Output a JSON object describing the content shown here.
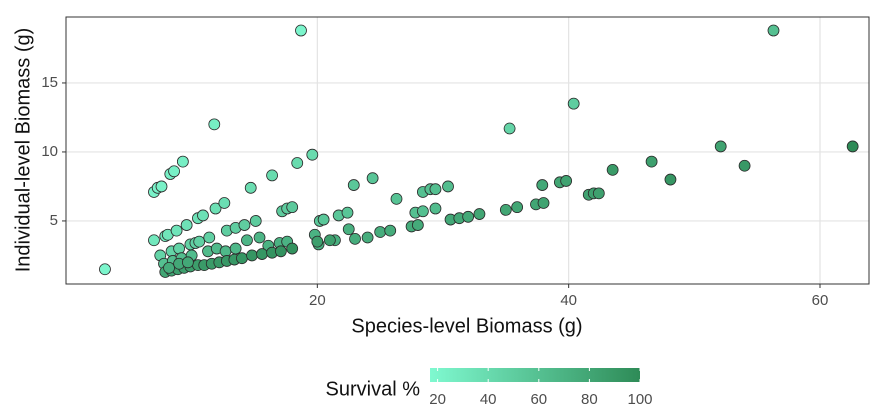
{
  "chart_data": {
    "type": "scatter",
    "x_label": "Species-level Biomass (g)",
    "y_label": "Individual-level Biomass (g)",
    "color_label": "Survival %",
    "color_low": "#7ff9d0",
    "color_high": "#2e8b57",
    "colorlim": [
      17,
      100
    ],
    "colorticks": [
      20,
      40,
      60,
      80,
      100
    ],
    "xlim": [
      0,
      63.9
    ],
    "ylim": [
      0.43,
      19.78
    ],
    "xticks": [
      20,
      40,
      60
    ],
    "yticks": [
      5,
      10,
      15
    ],
    "grid": true,
    "x": [
      3.1,
      7.0,
      7.3,
      7.6,
      8.3,
      8.6,
      9.3,
      11.8,
      18.7,
      7.0,
      7.9,
      8.1,
      8.8,
      9.6,
      10.5,
      10.9,
      11.9,
      12.6,
      14.7,
      16.4,
      18.4,
      19.6,
      35.3,
      40.4,
      56.3,
      7.5,
      8.4,
      9.0,
      9.9,
      10.3,
      10.6,
      11.4,
      12.8,
      13.5,
      14.2,
      15.1,
      17.2,
      17.6,
      18.0,
      20.2,
      20.5,
      21.7,
      22.4,
      22.9,
      24.4,
      26.3,
      27.8,
      28.4,
      28.4,
      29.0,
      29.4,
      30.4,
      29.4,
      7.8,
      8.5,
      9.2,
      10.0,
      11.3,
      12.0,
      12.7,
      13.5,
      14.4,
      15.4,
      16.1,
      17.0,
      17.6,
      19.8,
      20.1,
      21.4,
      22.5,
      23.0,
      24.0,
      25.0,
      25.8,
      27.5,
      28.0,
      30.6,
      31.3,
      32.0,
      32.9,
      35.0,
      35.9,
      37.4,
      38.0,
      37.9,
      39.3,
      39.8,
      41.6,
      42.0,
      42.4,
      43.5,
      46.6,
      48.1,
      52.1,
      54.0,
      62.6,
      7.9,
      8.4,
      8.9,
      9.4,
      9.9,
      10.5,
      11.0,
      11.6,
      12.2,
      12.8,
      13.4,
      14.0,
      14.8,
      15.6,
      16.4,
      17.1,
      18.0,
      20.0,
      21.0,
      8.2,
      9.0,
      9.7
    ],
    "y": [
      1.5,
      7.1,
      7.4,
      7.5,
      8.4,
      8.6,
      9.3,
      12.0,
      18.8,
      3.6,
      3.9,
      4.0,
      4.3,
      4.7,
      5.2,
      5.4,
      5.9,
      6.3,
      7.4,
      8.3,
      9.2,
      9.8,
      11.7,
      13.5,
      18.8,
      2.5,
      2.8,
      3.0,
      3.3,
      3.4,
      3.5,
      3.8,
      4.3,
      4.5,
      4.7,
      5.0,
      5.7,
      5.9,
      6.0,
      5.0,
      5.1,
      5.4,
      5.6,
      7.6,
      8.1,
      6.6,
      5.6,
      5.7,
      7.1,
      7.3,
      7.3,
      7.5,
      5.9,
      1.9,
      2.1,
      2.3,
      2.5,
      2.8,
      3.0,
      2.8,
      3.0,
      3.6,
      3.8,
      3.2,
      3.4,
      3.5,
      4.0,
      3.3,
      3.6,
      4.4,
      3.7,
      3.8,
      4.2,
      4.3,
      4.6,
      4.7,
      5.1,
      5.2,
      5.3,
      5.5,
      5.8,
      6.0,
      6.2,
      6.3,
      7.6,
      7.8,
      7.9,
      6.9,
      7.0,
      7.0,
      8.7,
      9.3,
      8.0,
      10.4,
      9.0,
      10.4,
      1.3,
      1.4,
      1.5,
      1.6,
      1.7,
      1.8,
      1.8,
      1.9,
      2.0,
      2.1,
      2.2,
      2.3,
      2.5,
      2.6,
      2.7,
      2.8,
      3.0,
      3.5,
      3.6,
      1.6,
      1.9,
      2.0
    ],
    "survival": [
      20,
      22,
      22,
      23,
      24,
      24,
      25,
      25,
      20,
      30,
      32,
      32,
      33,
      34,
      35,
      35,
      36,
      37,
      38,
      40,
      40,
      40,
      45,
      50,
      60,
      45,
      45,
      46,
      47,
      48,
      48,
      48,
      50,
      50,
      50,
      52,
      52,
      52,
      53,
      55,
      55,
      55,
      56,
      55,
      56,
      58,
      60,
      60,
      60,
      60,
      61,
      62,
      63,
      60,
      62,
      62,
      63,
      64,
      65,
      66,
      66,
      68,
      68,
      70,
      70,
      70,
      70,
      72,
      72,
      72,
      74,
      74,
      74,
      75,
      76,
      76,
      78,
      78,
      78,
      80,
      80,
      80,
      80,
      82,
      78,
      80,
      82,
      82,
      84,
      84,
      88,
      84,
      92,
      82,
      90,
      100,
      80,
      82,
      85,
      85,
      86,
      86,
      88,
      88,
      90,
      90,
      90,
      92,
      92,
      92,
      94,
      94,
      95,
      85,
      85,
      75,
      78,
      78
    ]
  }
}
